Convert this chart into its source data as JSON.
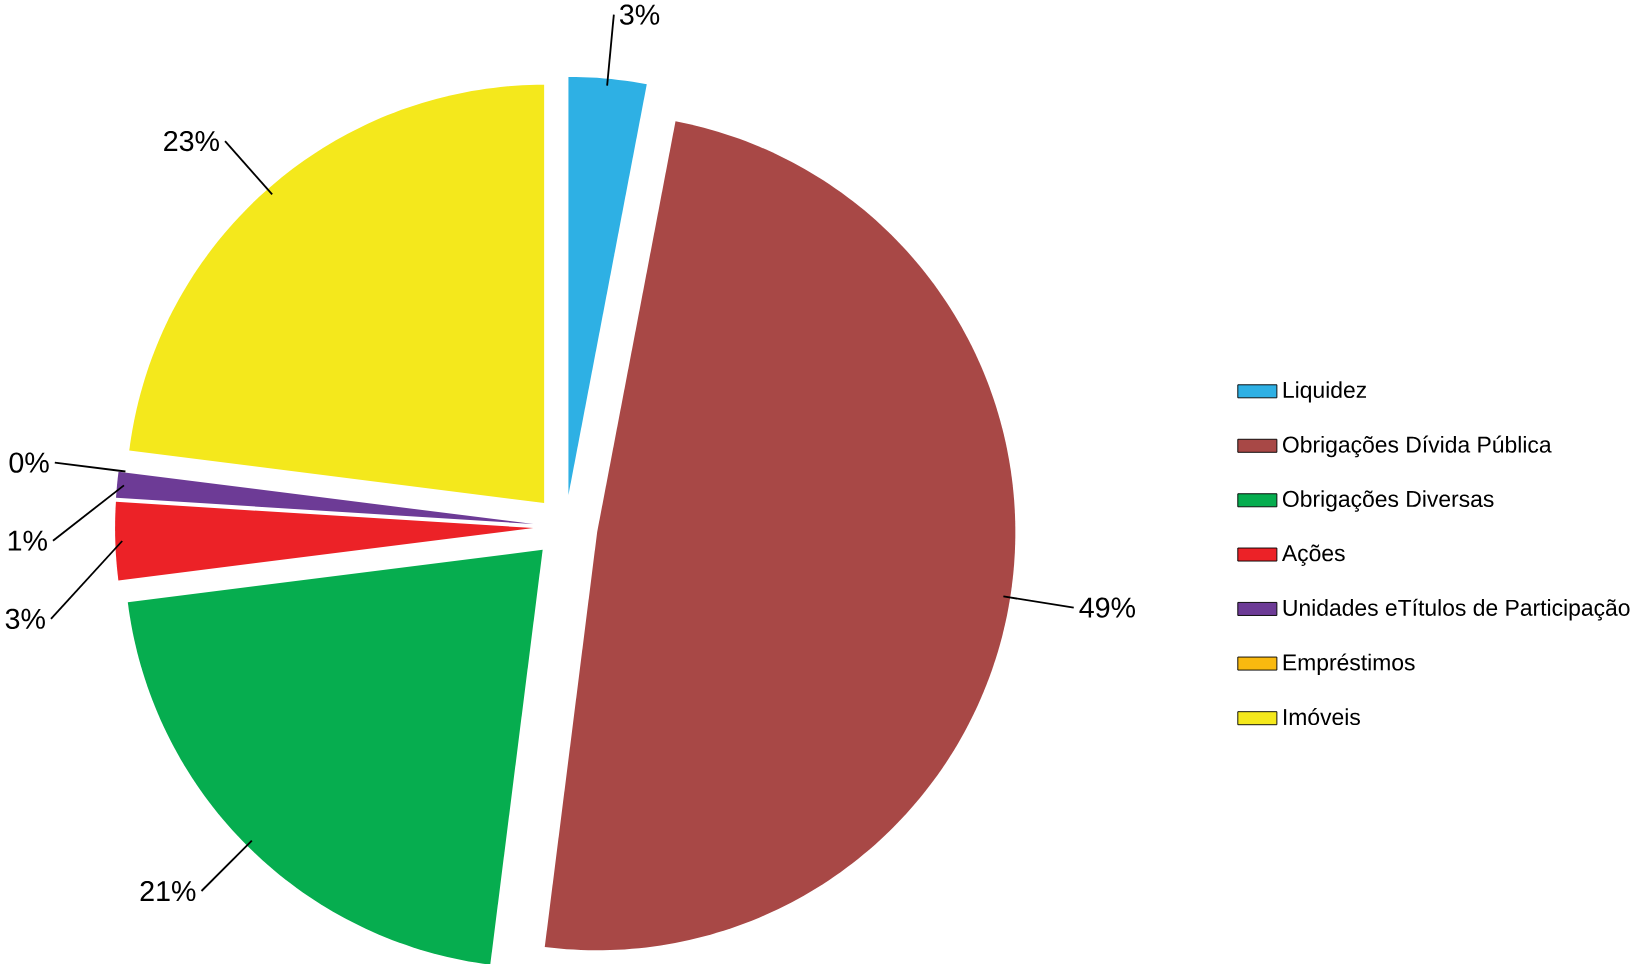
{
  "chart_data": {
    "type": "pie",
    "categories": [
      "Liquidez",
      "Obrigações Dívida Pública",
      "Obrigações Diversas",
      "Ações",
      "Unidades eTítulos de Participação",
      "Empréstimos",
      "Imóveis"
    ],
    "values": [
      3,
      49,
      21,
      3,
      1,
      0,
      23
    ],
    "value_labels": [
      "3%",
      "49%",
      "21%",
      "3%",
      "1%",
      "0%",
      "23%"
    ],
    "colors": [
      "#2eb0e4",
      "#a84846",
      "#06ad4f",
      "#ec2227",
      "#6d3b96",
      "#f9b90f",
      "#f4e81c"
    ],
    "legend": "right"
  }
}
